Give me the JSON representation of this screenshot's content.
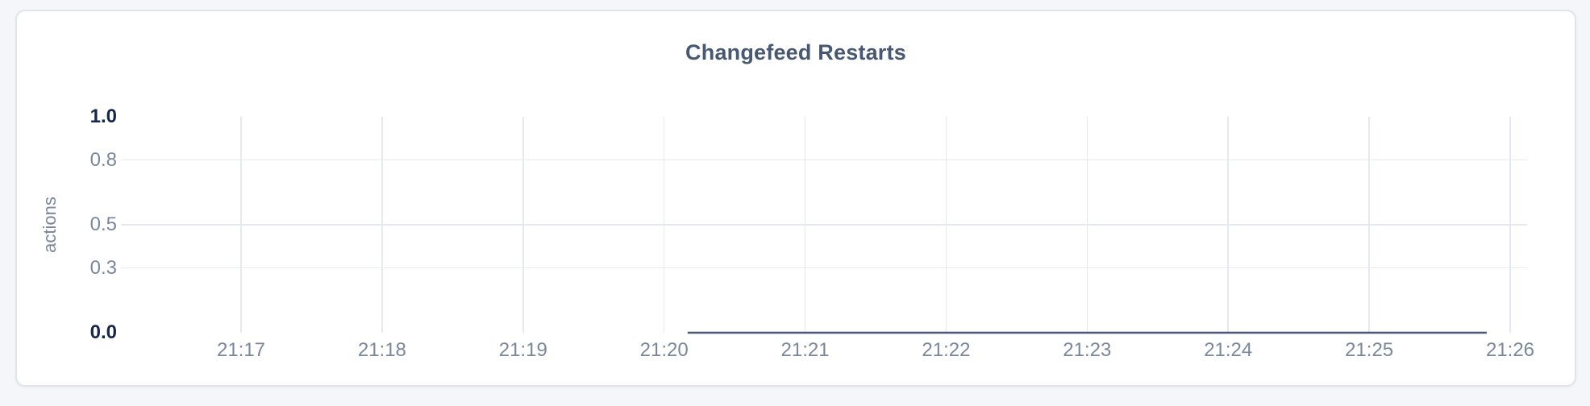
{
  "colors": {
    "page-bg": "#f5f6fa",
    "card-bg": "#ffffff",
    "card-border": "#e3e4e9",
    "title": "#475872",
    "axis-strong": "#152849",
    "axis-muted": "#7b879c",
    "gridline": "#e7e9f1",
    "series-line": "#475872"
  },
  "chart_data": {
    "type": "line",
    "title": "Changefeed Restarts",
    "ylabel": "actions",
    "xlabel": "",
    "x_ticks": [
      "21:17",
      "21:18",
      "21:19",
      "21:20",
      "21:21",
      "21:22",
      "21:23",
      "21:24",
      "21:25",
      "21:26"
    ],
    "x_range": [
      "21:17",
      "21:26"
    ],
    "y_ticks": [
      1.0,
      0.8,
      0.5,
      0.3,
      0.0
    ],
    "y_tick_labels": [
      "1.0",
      "0.8",
      "0.5",
      "0.3",
      "0.0"
    ],
    "ylim": [
      0,
      1
    ],
    "grid": true,
    "legend": "none",
    "series": [
      {
        "name": "actions",
        "color": "#475872",
        "points": [
          {
            "time": "21:20:10",
            "value": 0
          },
          {
            "time": "21:25:50",
            "value": 0
          }
        ]
      }
    ]
  }
}
